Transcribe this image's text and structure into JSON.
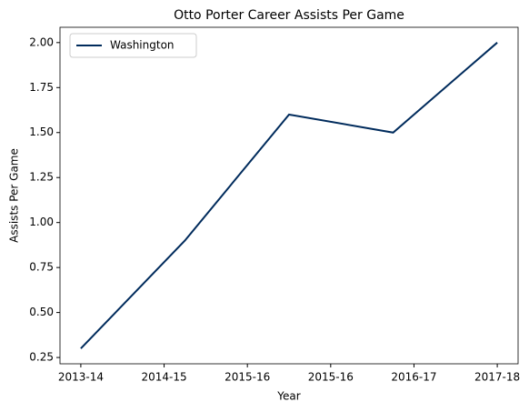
{
  "chart_data": {
    "type": "line",
    "title": "Otto Porter Career Assists Per Game",
    "x_label": "Year",
    "y_label": "Assists Per Game",
    "x": [
      0,
      1,
      2,
      3,
      4
    ],
    "series": [
      {
        "name": "Washington",
        "color": "#002b5c",
        "values": [
          0.3,
          0.9,
          1.6,
          1.5,
          2.0
        ]
      }
    ],
    "xlim": [
      -0.2,
      4.2
    ],
    "xticks": [
      {
        "value": 0,
        "label": "2013-14"
      },
      {
        "value": 0.8,
        "label": "2014-15"
      },
      {
        "value": 1.6,
        "label": "2015-16"
      },
      {
        "value": 2.4,
        "label": "2015-16"
      },
      {
        "value": 3.2,
        "label": "2016-17"
      },
      {
        "value": 4,
        "label": "2017-18"
      }
    ],
    "ylim": [
      0.215,
      2.085
    ],
    "yticks": [
      {
        "value": 0.25,
        "label": "0.25"
      },
      {
        "value": 0.5,
        "label": "0.50"
      },
      {
        "value": 0.75,
        "label": "0.75"
      },
      {
        "value": 1.0,
        "label": "1.00"
      },
      {
        "value": 1.25,
        "label": "1.25"
      },
      {
        "value": 1.5,
        "label": "1.50"
      },
      {
        "value": 1.75,
        "label": "1.75"
      },
      {
        "value": 2.0,
        "label": "2.00"
      }
    ],
    "legend": "upper left",
    "grid": false
  }
}
